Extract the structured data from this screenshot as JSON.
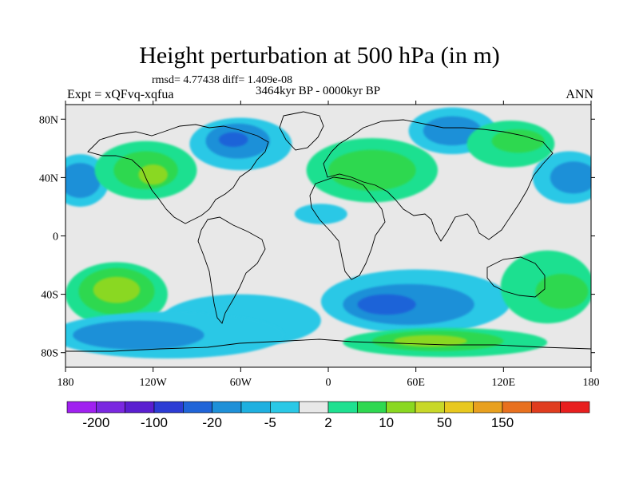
{
  "title": "Height perturbation at 500 hPa (in m)",
  "stats": "rmsd= 4.77438 diff= 1.409e-08",
  "period": "3464kyr BP - 0000kyr BP",
  "experiment": "Expt = xQFvq-xqfua",
  "season": "ANN",
  "axes": {
    "x_ticks": [
      {
        "value": -180,
        "label": "180"
      },
      {
        "value": -120,
        "label": "120W"
      },
      {
        "value": -60,
        "label": "60W"
      },
      {
        "value": 0,
        "label": "0"
      },
      {
        "value": 60,
        "label": "60E"
      },
      {
        "value": 120,
        "label": "120E"
      },
      {
        "value": 180,
        "label": "180"
      }
    ],
    "y_ticks": [
      {
        "value": 80,
        "label": "80N"
      },
      {
        "value": 40,
        "label": "40N"
      },
      {
        "value": 0,
        "label": "0"
      },
      {
        "value": -40,
        "label": "40S"
      },
      {
        "value": -80,
        "label": "80S"
      }
    ],
    "lon_range": [
      -180,
      180
    ],
    "lat_range": [
      -90,
      90
    ]
  },
  "colorbar": {
    "colors": [
      "#a020f0",
      "#7a28e0",
      "#5a1ed0",
      "#2c3cd4",
      "#1f64d8",
      "#1e90d8",
      "#1eb0e0",
      "#2ac8e6",
      "#e8e8e8",
      "#1ee090",
      "#2ed850",
      "#8ad820",
      "#c8d828",
      "#e8c81e",
      "#e8a01e",
      "#e8701e",
      "#e03c1e",
      "#e81e1e"
    ],
    "labels": [
      "-200",
      "-100",
      "-20",
      "-5",
      "2",
      "10",
      "50",
      "150"
    ],
    "label_after_box": [
      1,
      3,
      5,
      7,
      9,
      11,
      13,
      15
    ]
  },
  "field_colors": {
    "neutral": "#e8e8e8",
    "blue_dark": "#1f64d8",
    "blue_mid": "#1e90d8",
    "blue_light": "#2ac8e6",
    "green_light": "#1ee090",
    "green_mid": "#2ed850",
    "yellow_green": "#8ad820",
    "yellow": "#c8d828",
    "coast": "#000000"
  },
  "anomaly_regions": [
    {
      "name": "south-atlantic-blue",
      "color": "blue_light",
      "lon": -60,
      "lat": -58,
      "rlon": 55,
      "rlat": 18
    },
    {
      "name": "south-pacific-green",
      "color": "green_light",
      "lon": -145,
      "lat": -40,
      "rlon": 35,
      "rlat": 22
    },
    {
      "name": "south-pacific-green-mid",
      "color": "green_mid",
      "lon": -145,
      "lat": -38,
      "rlon": 26,
      "rlat": 16
    },
    {
      "name": "south-pacific-yellow",
      "color": "yellow_green",
      "lon": -145,
      "lat": -37,
      "rlon": 16,
      "rlat": 9
    },
    {
      "name": "southern-belt-blue",
      "color": "blue_light",
      "lon": -110,
      "lat": -68,
      "rlon": 80,
      "rlat": 16
    },
    {
      "name": "southern-belt-blue-mid",
      "color": "blue_mid",
      "lon": -130,
      "lat": -68,
      "rlon": 45,
      "rlat": 10
    },
    {
      "name": "south-indian-blue",
      "color": "blue_light",
      "lon": 60,
      "lat": -45,
      "rlon": 65,
      "rlat": 22
    },
    {
      "name": "south-indian-blue-mid",
      "color": "blue_mid",
      "lon": 55,
      "lat": -47,
      "rlon": 45,
      "rlat": 14
    },
    {
      "name": "south-indian-blue-dark",
      "color": "blue_dark",
      "lon": 40,
      "lat": -47,
      "rlon": 20,
      "rlat": 7
    },
    {
      "name": "antarctic-green",
      "color": "green_light",
      "lon": 80,
      "lat": -73,
      "rlon": 70,
      "rlat": 10
    },
    {
      "name": "antarctic-green-mid",
      "color": "green_mid",
      "lon": 75,
      "lat": -72,
      "rlon": 45,
      "rlat": 7
    },
    {
      "name": "antarctic-yellow",
      "color": "yellow_green",
      "lon": 70,
      "lat": -72,
      "rlon": 25,
      "rlat": 4
    },
    {
      "name": "australia-green",
      "color": "green_light",
      "lon": 150,
      "lat": -35,
      "rlon": 32,
      "rlat": 25
    },
    {
      "name": "australia-green-mid",
      "color": "green_mid",
      "lon": 160,
      "lat": -38,
      "rlon": 18,
      "rlat": 12
    },
    {
      "name": "north-pacific-blue-west",
      "color": "blue_light",
      "lon": -170,
      "lat": 38,
      "rlon": 20,
      "rlat": 18
    },
    {
      "name": "north-pacific-blue-west-mid",
      "color": "blue_mid",
      "lon": -170,
      "lat": 38,
      "rlon": 14,
      "rlat": 12
    },
    {
      "name": "north-pacific-blue-east",
      "color": "blue_light",
      "lon": 165,
      "lat": 40,
      "rlon": 25,
      "rlat": 18
    },
    {
      "name": "north-pacific-blue-east-mid",
      "color": "blue_mid",
      "lon": 168,
      "lat": 40,
      "rlon": 16,
      "rlat": 11
    },
    {
      "name": "north-america-green",
      "color": "green_light",
      "lon": -125,
      "lat": 45,
      "rlon": 35,
      "rlat": 20
    },
    {
      "name": "north-america-green-mid",
      "color": "green_mid",
      "lon": -125,
      "lat": 45,
      "rlon": 22,
      "rlat": 13
    },
    {
      "name": "north-america-yellow",
      "color": "yellow_green",
      "lon": -120,
      "lat": 42,
      "rlon": 10,
      "rlat": 7
    },
    {
      "name": "arctic-canada-blue",
      "color": "blue_light",
      "lon": -60,
      "lat": 63,
      "rlon": 35,
      "rlat": 18
    },
    {
      "name": "arctic-canada-blue-mid",
      "color": "blue_mid",
      "lon": -62,
      "lat": 65,
      "rlon": 22,
      "rlat": 12
    },
    {
      "name": "arctic-canada-blue-dark",
      "color": "blue_dark",
      "lon": -65,
      "lat": 66,
      "rlon": 10,
      "rlat": 5
    },
    {
      "name": "eurasia-green",
      "color": "green_light",
      "lon": 30,
      "lat": 45,
      "rlon": 45,
      "rlat": 22
    },
    {
      "name": "eurasia-green-mid",
      "color": "green_mid",
      "lon": 30,
      "lat": 45,
      "rlon": 30,
      "rlat": 14
    },
    {
      "name": "siberia-blue",
      "color": "blue_light",
      "lon": 85,
      "lat": 72,
      "rlon": 30,
      "rlat": 16
    },
    {
      "name": "siberia-blue-mid",
      "color": "blue_mid",
      "lon": 85,
      "lat": 72,
      "rlon": 20,
      "rlat": 10
    },
    {
      "name": "mid-atlantic-blue",
      "color": "blue_light",
      "lon": -5,
      "lat": 15,
      "rlon": 18,
      "rlat": 7
    },
    {
      "name": "east-asia-green",
      "color": "green_light",
      "lon": 125,
      "lat": 63,
      "rlon": 30,
      "rlat": 16
    },
    {
      "name": "east-asia-green-mid",
      "color": "green_mid",
      "lon": 130,
      "lat": 65,
      "rlon": 18,
      "rlat": 8
    }
  ]
}
